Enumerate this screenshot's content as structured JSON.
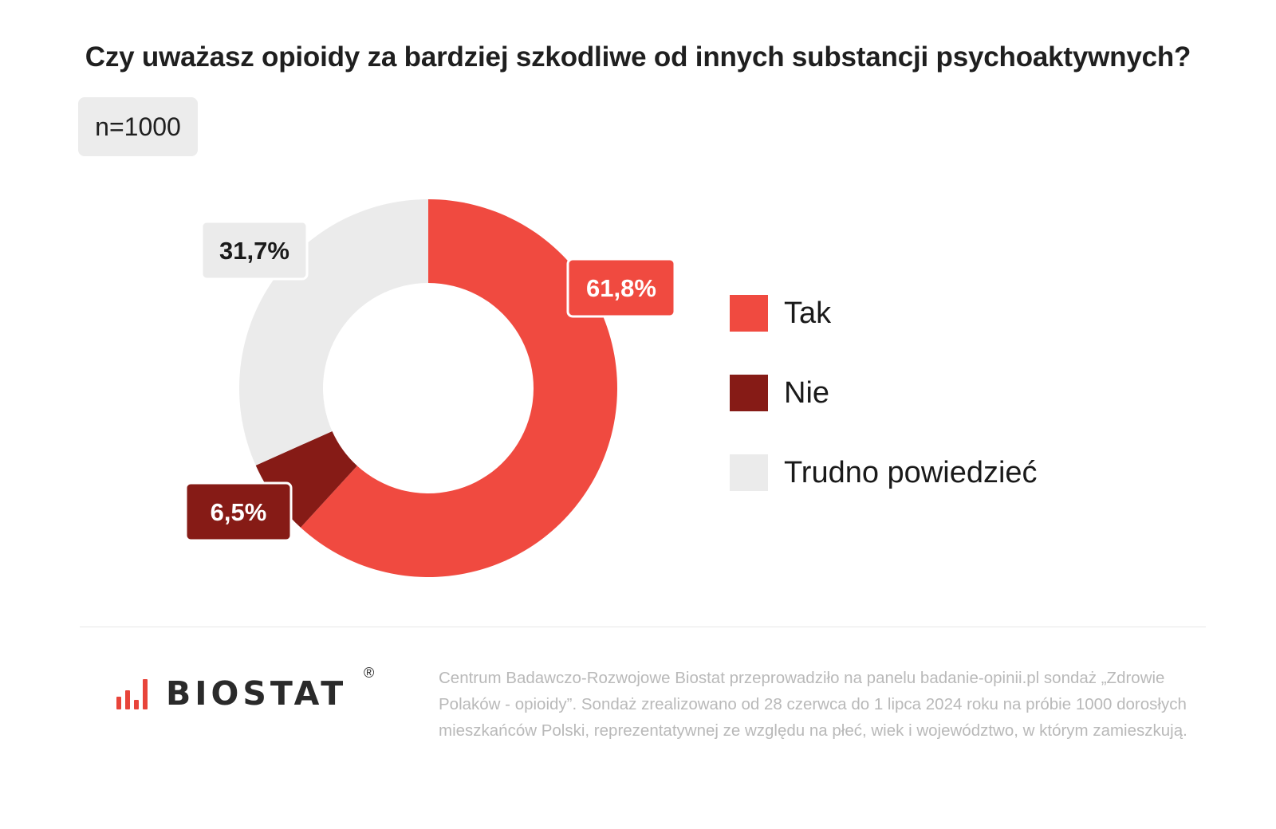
{
  "title": "Czy uważasz opioidy za bardziej szkodliwe od innych substancji psychoaktywnych?",
  "sample": "n=1000",
  "chart_data": {
    "type": "pie",
    "variant": "donut",
    "title": "Czy uważasz opioidy za bardziej szkodliwe od innych substancji psychoaktywnych?",
    "categories": [
      "Tak",
      "Nie",
      "Trudno powiedzieć"
    ],
    "values": [
      61.8,
      6.5,
      31.7
    ],
    "labels": [
      "61,8%",
      "6,5%",
      "31,7%"
    ],
    "colors": [
      "#f04a40",
      "#861b16",
      "#ebebeb"
    ],
    "label_text_colors": [
      "#ffffff",
      "#ffffff",
      "#1a1a1a"
    ],
    "legend_position": "right",
    "start": "top",
    "direction": "clockwise"
  },
  "legend": {
    "items": [
      {
        "label": "Tak",
        "color": "#f04a40"
      },
      {
        "label": "Nie",
        "color": "#861b16"
      },
      {
        "label": "Trudno powiedzieć",
        "color": "#ebebeb"
      }
    ]
  },
  "brand": {
    "name": "BIOSTAT",
    "registered": "®",
    "accent": "#e8443a"
  },
  "footnote": "Centrum Badawczo-Rozwojowe Biostat przeprowadziło na panelu badanie-opinii.pl sondaż „Zdrowie Polaków - opioidy”. Sondaż zrealizowano od 28 czerwca do 1 lipca 2024 roku na próbie 1000 dorosłych mieszkańców Polski, reprezentatywnej ze względu na płeć, wiek i województwo, w którym zamieszkują."
}
